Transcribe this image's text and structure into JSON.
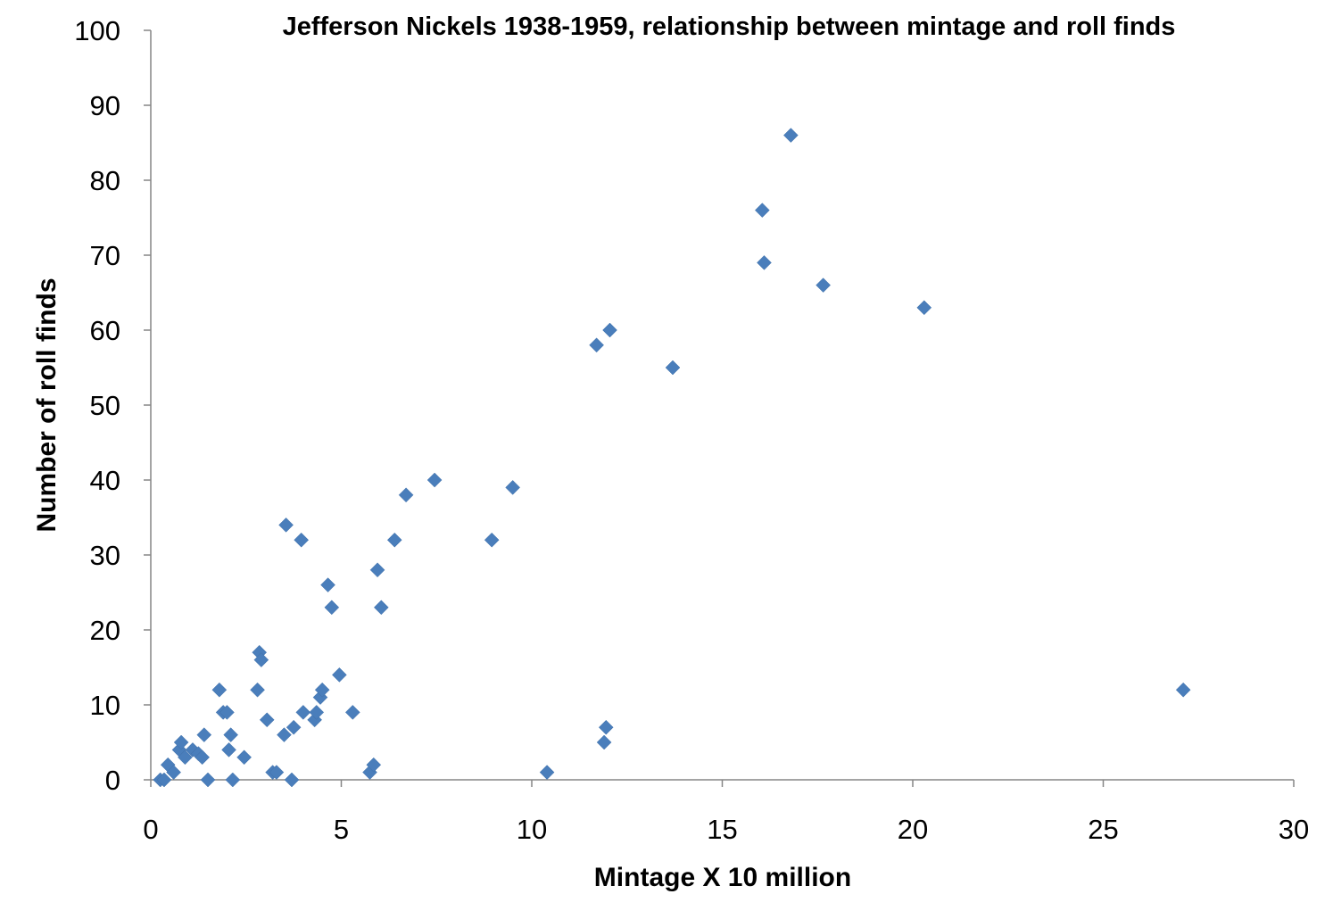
{
  "chart_data": {
    "type": "scatter",
    "title": "Jefferson Nickels 1938-1959, relationship between mintage and roll finds",
    "xlabel": "Mintage X 10 million",
    "ylabel": "Number of roll finds",
    "xlim": [
      0,
      30
    ],
    "ylim": [
      0,
      100
    ],
    "xticks": [
      0,
      5,
      10,
      15,
      20,
      25,
      30
    ],
    "yticks": [
      0,
      10,
      20,
      30,
      40,
      50,
      60,
      70,
      80,
      90,
      100
    ],
    "grid": false,
    "legend": "none",
    "marker": "diamond",
    "marker_color": "#4a7ebb",
    "points": [
      [
        0.25,
        0
      ],
      [
        0.35,
        0
      ],
      [
        0.45,
        2
      ],
      [
        0.6,
        1
      ],
      [
        0.75,
        4
      ],
      [
        0.8,
        5
      ],
      [
        0.9,
        3
      ],
      [
        1.1,
        4
      ],
      [
        1.25,
        3.5
      ],
      [
        1.35,
        3
      ],
      [
        1.4,
        6
      ],
      [
        1.5,
        0
      ],
      [
        1.8,
        12
      ],
      [
        1.9,
        9
      ],
      [
        2.0,
        9
      ],
      [
        2.05,
        4
      ],
      [
        2.1,
        6
      ],
      [
        2.15,
        0
      ],
      [
        2.45,
        3
      ],
      [
        2.8,
        12
      ],
      [
        2.85,
        17
      ],
      [
        2.9,
        16
      ],
      [
        3.05,
        8
      ],
      [
        3.2,
        1
      ],
      [
        3.3,
        1
      ],
      [
        3.5,
        6
      ],
      [
        3.55,
        34
      ],
      [
        3.7,
        0
      ],
      [
        3.75,
        7
      ],
      [
        3.95,
        32
      ],
      [
        4.0,
        9
      ],
      [
        4.3,
        8
      ],
      [
        4.35,
        9
      ],
      [
        4.45,
        11
      ],
      [
        4.5,
        12
      ],
      [
        4.65,
        26
      ],
      [
        4.75,
        23
      ],
      [
        4.95,
        14
      ],
      [
        5.3,
        9
      ],
      [
        5.75,
        1
      ],
      [
        5.85,
        2
      ],
      [
        5.95,
        28
      ],
      [
        6.05,
        23
      ],
      [
        6.4,
        32
      ],
      [
        6.7,
        38
      ],
      [
        7.45,
        40
      ],
      [
        8.95,
        32
      ],
      [
        9.5,
        39
      ],
      [
        10.4,
        1
      ],
      [
        11.7,
        58
      ],
      [
        11.9,
        5
      ],
      [
        11.95,
        7
      ],
      [
        12.05,
        60
      ],
      [
        13.7,
        55
      ],
      [
        16.05,
        76
      ],
      [
        16.1,
        69
      ],
      [
        16.8,
        86
      ],
      [
        17.65,
        66
      ],
      [
        20.3,
        63
      ],
      [
        27.1,
        12
      ]
    ]
  }
}
